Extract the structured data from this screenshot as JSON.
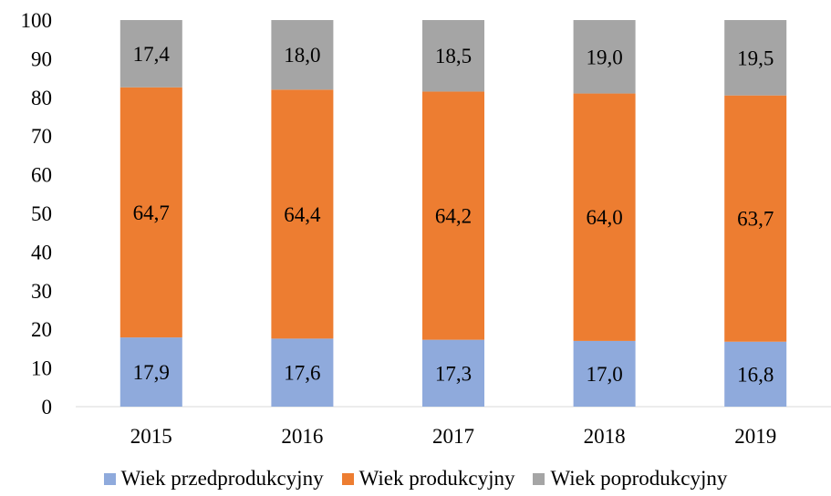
{
  "chart_data": {
    "type": "bar",
    "stacked": true,
    "categories": [
      "2015",
      "2016",
      "2017",
      "2018",
      "2019"
    ],
    "series": [
      {
        "name": "Wiek przedprodukcyjny",
        "values": [
          17.9,
          17.6,
          17.3,
          17.0,
          16.8
        ],
        "labels": [
          "17,9",
          "17,6",
          "17,3",
          "17,0",
          "16,8"
        ],
        "color": "#8faadc"
      },
      {
        "name": "Wiek produkcyjny",
        "values": [
          64.7,
          64.4,
          64.2,
          64.0,
          63.7
        ],
        "labels": [
          "64,7",
          "64,4",
          "64,2",
          "64,0",
          "63,7"
        ],
        "color": "#ed7d31"
      },
      {
        "name": "Wiek poprodukcyjny",
        "values": [
          17.4,
          18.0,
          18.5,
          19.0,
          19.5
        ],
        "labels": [
          "17,4",
          "18,0",
          "18,5",
          "19,0",
          "19,5"
        ],
        "color": "#a5a5a5"
      }
    ],
    "ylim": [
      0,
      100
    ],
    "yticks": [
      "0",
      "10",
      "20",
      "30",
      "40",
      "50",
      "60",
      "70",
      "80",
      "90",
      "100"
    ],
    "grid": false,
    "legend_position": "bottom"
  }
}
